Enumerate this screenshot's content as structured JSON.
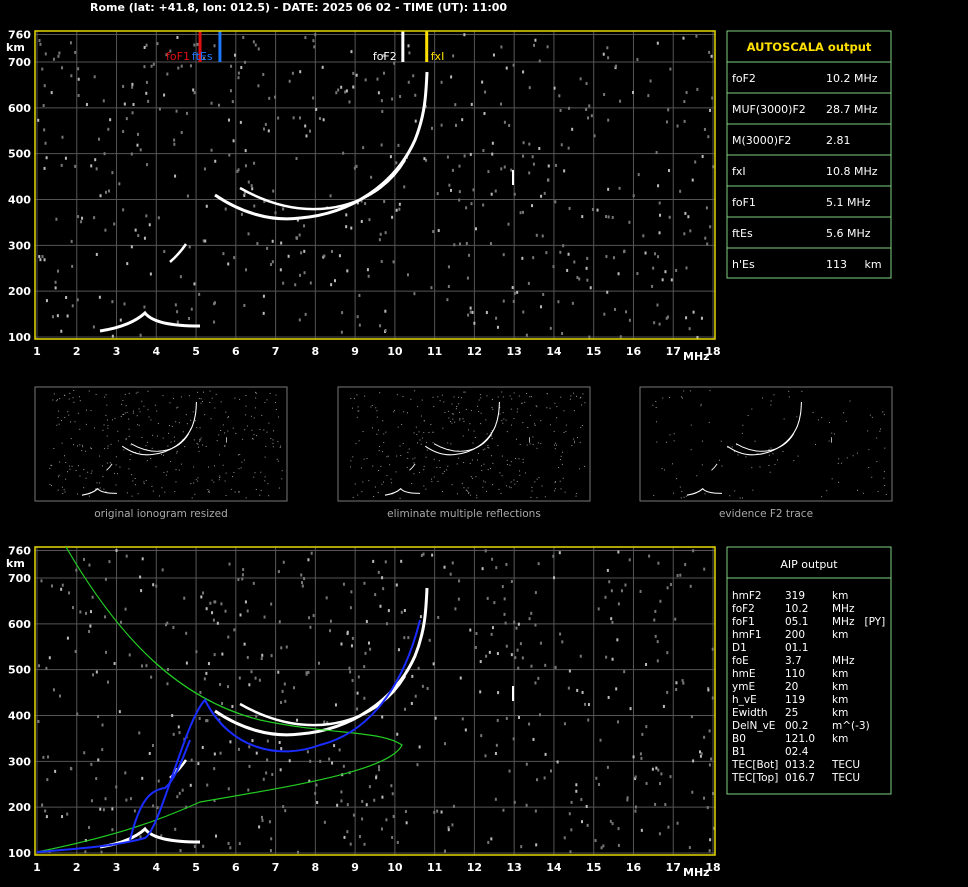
{
  "header": {
    "title": "Rome (lat: +41.8, lon: 012.5) - DATE: 2025 06 02 - TIME (UT): 11:00"
  },
  "ionogram": {
    "y_label": "km",
    "x_label": "MHz",
    "xlim": [
      1,
      18
    ],
    "ylim": [
      100,
      760
    ],
    "xticks": [
      1,
      2,
      3,
      4,
      5,
      6,
      7,
      8,
      9,
      10,
      11,
      12,
      13,
      14,
      15,
      16,
      17,
      18
    ],
    "yticks": [
      100,
      200,
      300,
      400,
      500,
      600,
      700,
      760
    ],
    "markers": [
      {
        "label": "foF1",
        "value": 5.1,
        "color": "#e01010"
      },
      {
        "label": "ftEs",
        "value": 5.6,
        "color": "#1e78ff"
      },
      {
        "label": "foF2",
        "value": 10.2,
        "color": "#ffffff"
      },
      {
        "label": "fxI",
        "value": 10.8,
        "color": "#ffe000"
      }
    ]
  },
  "autoscala": {
    "title": "AUTOSCALA output",
    "rows": [
      {
        "name": "foF2",
        "value": "10.2 MHz",
        "color": "#ffffff"
      },
      {
        "name": "MUF(3000)F2",
        "value": "28.7 MHz",
        "color": "#ffffff"
      },
      {
        "name": "M(3000)F2",
        "value": "2.81",
        "color": "#ffffff"
      },
      {
        "name": "fxI",
        "value": "10.8 MHz",
        "color": "#ffe000"
      },
      {
        "name": "foF1",
        "value": "5.1 MHz",
        "color": "#e01010"
      },
      {
        "name": "ftEs",
        "value": "5.6 MHz",
        "color": "#1e78ff"
      },
      {
        "name": "h'Es",
        "value": "113     km",
        "color": "#ffffff"
      }
    ]
  },
  "thumbnails": {
    "captions": [
      "original ionogram resized",
      "eliminate multiple reflections",
      "evidence F2 trace"
    ]
  },
  "aip": {
    "title": "AIP output",
    "rows": [
      [
        "hmF2",
        "319",
        "km"
      ],
      [
        "foF2",
        "10.2",
        "MHz"
      ],
      [
        "foF1",
        "05.1",
        "MHz   [PY]"
      ],
      [
        "hmF1",
        "200",
        "km"
      ],
      [
        "D1",
        "01.1",
        ""
      ],
      [
        "foE",
        "3.7",
        "MHz"
      ],
      [
        "hmE",
        "110",
        "km"
      ],
      [
        "ymE",
        "20",
        "km"
      ],
      [
        "h_vE",
        "119",
        "km"
      ],
      [
        "Ewidth",
        "25",
        "km"
      ],
      [
        "DelN_vE",
        "00.2",
        "m^(-3)"
      ],
      [
        "B0",
        "121.0",
        "km"
      ],
      [
        "B1",
        "02.4",
        ""
      ],
      [
        "TEC[Bot]",
        "013.2",
        "TECU"
      ],
      [
        "TEC[Top]",
        "016.7",
        "TECU"
      ]
    ]
  }
}
